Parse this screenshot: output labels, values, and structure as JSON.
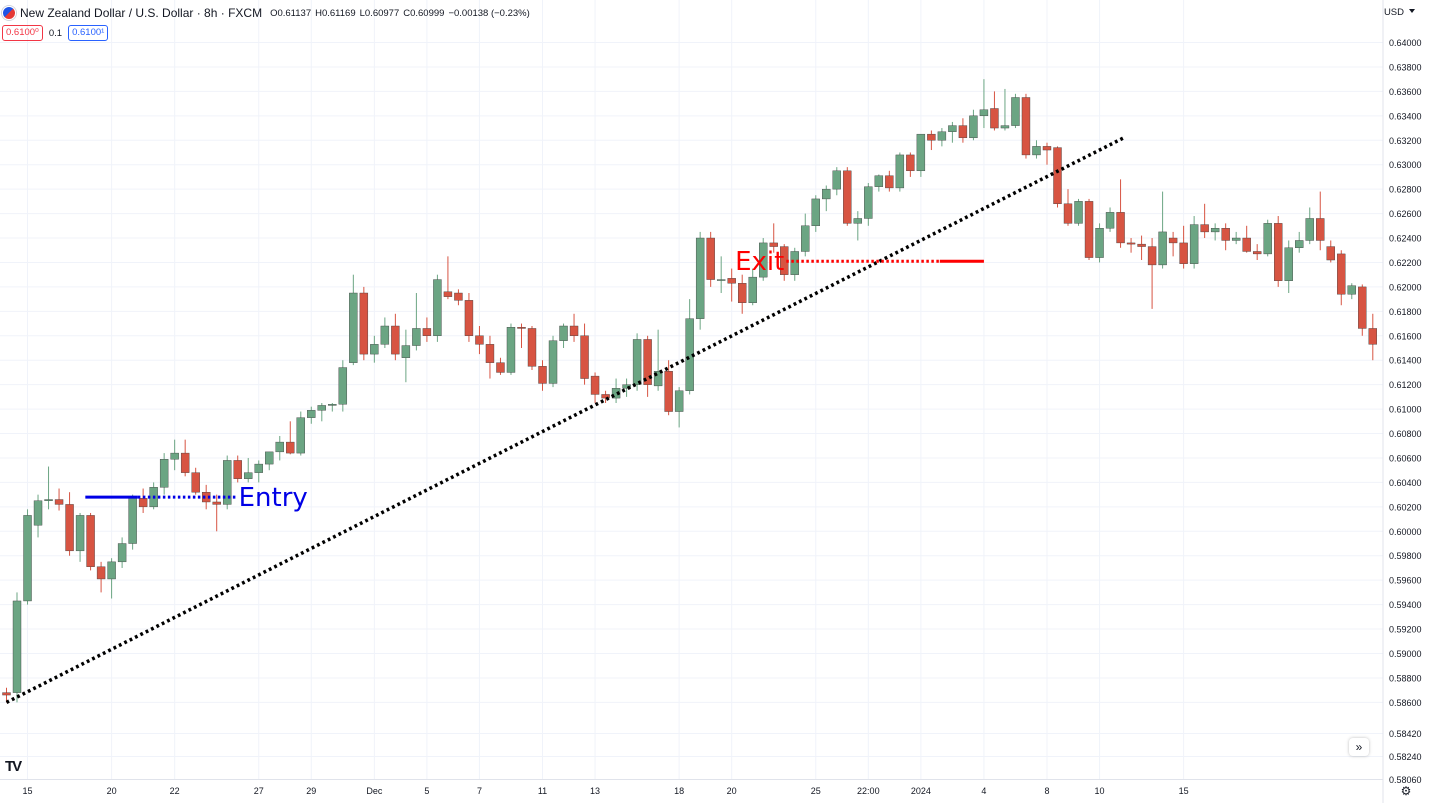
{
  "header": {
    "title": "New Zealand Dollar / U.S. Dollar · 8h · FXCM",
    "open": "O0.61137",
    "high": "H0.61169",
    "low": "L0.60977",
    "close": "C0.60999",
    "change": "−0.00138 (−0.23%)",
    "sell_price": "0.6100⁰",
    "spread": "0.1",
    "buy_price": "0.6100¹"
  },
  "currency": "USD",
  "colors": {
    "up": "#6ba583",
    "down": "#d75442",
    "entry": "#0000e6",
    "exit": "#ff0000",
    "trend": "#000000"
  },
  "chart_data": {
    "type": "candlestick",
    "symbol": "NZDUSD",
    "timeframe": "8h",
    "ylim": [
      0.5804,
      0.641
    ],
    "y_ticks": [
      "0.64000",
      "0.63800",
      "0.63600",
      "0.63400",
      "0.63200",
      "0.63000",
      "0.62800",
      "0.62600",
      "0.62400",
      "0.62200",
      "0.62000",
      "0.61800",
      "0.61600",
      "0.61400",
      "0.61200",
      "0.61000",
      "0.60800",
      "0.60600",
      "0.60400",
      "0.60200",
      "0.60000",
      "0.59800",
      "0.59600",
      "0.59400",
      "0.59200",
      "0.59000",
      "0.58800",
      "0.58600",
      "0.58420",
      "0.58240",
      "0.58060"
    ],
    "x_ticks": [
      {
        "label": "15",
        "i": 2
      },
      {
        "label": "20",
        "i": 10
      },
      {
        "label": "22",
        "i": 16
      },
      {
        "label": "27",
        "i": 24
      },
      {
        "label": "29",
        "i": 29
      },
      {
        "label": "Dec",
        "i": 35
      },
      {
        "label": "5",
        "i": 40
      },
      {
        "label": "7",
        "i": 45
      },
      {
        "label": "11",
        "i": 51
      },
      {
        "label": "13",
        "i": 56
      },
      {
        "label": "18",
        "i": 64
      },
      {
        "label": "20",
        "i": 69
      },
      {
        "label": "25",
        "i": 77
      },
      {
        "label": "22:00",
        "i": 82
      },
      {
        "label": "2024",
        "i": 87
      },
      {
        "label": "4",
        "i": 93
      },
      {
        "label": "8",
        "i": 99
      },
      {
        "label": "10",
        "i": 104
      },
      {
        "label": "15",
        "i": 112
      }
    ],
    "candles": [
      {
        "o": 0.5868,
        "h": 0.5872,
        "l": 0.586,
        "c": 0.5866
      },
      {
        "o": 0.5868,
        "h": 0.595,
        "l": 0.586,
        "c": 0.5943
      },
      {
        "o": 0.5943,
        "h": 0.6018,
        "l": 0.594,
        "c": 0.6013
      },
      {
        "o": 0.6005,
        "h": 0.603,
        "l": 0.5995,
        "c": 0.6025
      },
      {
        "o": 0.6025,
        "h": 0.6053,
        "l": 0.6018,
        "c": 0.6026
      },
      {
        "o": 0.6026,
        "h": 0.6035,
        "l": 0.6017,
        "c": 0.6022
      },
      {
        "o": 0.6022,
        "h": 0.6032,
        "l": 0.598,
        "c": 0.5984
      },
      {
        "o": 0.5984,
        "h": 0.6015,
        "l": 0.5975,
        "c": 0.6013
      },
      {
        "o": 0.6013,
        "h": 0.6015,
        "l": 0.5968,
        "c": 0.5971
      },
      {
        "o": 0.5971,
        "h": 0.5975,
        "l": 0.595,
        "c": 0.5961
      },
      {
        "o": 0.5961,
        "h": 0.5978,
        "l": 0.5945,
        "c": 0.5975
      },
      {
        "o": 0.5975,
        "h": 0.5995,
        "l": 0.597,
        "c": 0.599
      },
      {
        "o": 0.599,
        "h": 0.603,
        "l": 0.5985,
        "c": 0.6027
      },
      {
        "o": 0.6027,
        "h": 0.6035,
        "l": 0.6015,
        "c": 0.602
      },
      {
        "o": 0.602,
        "h": 0.604,
        "l": 0.6018,
        "c": 0.6036
      },
      {
        "o": 0.6036,
        "h": 0.6064,
        "l": 0.603,
        "c": 0.6059
      },
      {
        "o": 0.6059,
        "h": 0.6075,
        "l": 0.605,
        "c": 0.6064
      },
      {
        "o": 0.6064,
        "h": 0.6075,
        "l": 0.6045,
        "c": 0.6048
      },
      {
        "o": 0.6048,
        "h": 0.6052,
        "l": 0.603,
        "c": 0.6032
      },
      {
        "o": 0.6032,
        "h": 0.6038,
        "l": 0.6018,
        "c": 0.6024
      },
      {
        "o": 0.6024,
        "h": 0.603,
        "l": 0.6,
        "c": 0.6022
      },
      {
        "o": 0.6022,
        "h": 0.6062,
        "l": 0.6018,
        "c": 0.6058
      },
      {
        "o": 0.6058,
        "h": 0.6062,
        "l": 0.604,
        "c": 0.6043
      },
      {
        "o": 0.6043,
        "h": 0.606,
        "l": 0.604,
        "c": 0.6048
      },
      {
        "o": 0.6048,
        "h": 0.6058,
        "l": 0.604,
        "c": 0.6055
      },
      {
        "o": 0.6055,
        "h": 0.6065,
        "l": 0.605,
        "c": 0.6065
      },
      {
        "o": 0.6065,
        "h": 0.6078,
        "l": 0.6058,
        "c": 0.6073
      },
      {
        "o": 0.6073,
        "h": 0.609,
        "l": 0.6063,
        "c": 0.6064
      },
      {
        "o": 0.6064,
        "h": 0.6098,
        "l": 0.6062,
        "c": 0.6093
      },
      {
        "o": 0.6093,
        "h": 0.6102,
        "l": 0.6088,
        "c": 0.6099
      },
      {
        "o": 0.6099,
        "h": 0.6105,
        "l": 0.609,
        "c": 0.6103
      },
      {
        "o": 0.6103,
        "h": 0.6105,
        "l": 0.6098,
        "c": 0.6104
      },
      {
        "o": 0.6104,
        "h": 0.614,
        "l": 0.6098,
        "c": 0.6134
      },
      {
        "o": 0.6138,
        "h": 0.621,
        "l": 0.6136,
        "c": 0.6195
      },
      {
        "o": 0.6195,
        "h": 0.62,
        "l": 0.614,
        "c": 0.6145
      },
      {
        "o": 0.6145,
        "h": 0.616,
        "l": 0.6138,
        "c": 0.6153
      },
      {
        "o": 0.6153,
        "h": 0.6175,
        "l": 0.615,
        "c": 0.6168
      },
      {
        "o": 0.6168,
        "h": 0.6178,
        "l": 0.614,
        "c": 0.6145
      },
      {
        "o": 0.6142,
        "h": 0.6165,
        "l": 0.6122,
        "c": 0.6152
      },
      {
        "o": 0.6152,
        "h": 0.6195,
        "l": 0.6148,
        "c": 0.6166
      },
      {
        "o": 0.6166,
        "h": 0.6175,
        "l": 0.6155,
        "c": 0.616
      },
      {
        "o": 0.616,
        "h": 0.621,
        "l": 0.6155,
        "c": 0.6206
      },
      {
        "o": 0.6196,
        "h": 0.6225,
        "l": 0.619,
        "c": 0.6192
      },
      {
        "o": 0.6195,
        "h": 0.6198,
        "l": 0.6185,
        "c": 0.6189
      },
      {
        "o": 0.6189,
        "h": 0.6195,
        "l": 0.6155,
        "c": 0.616
      },
      {
        "o": 0.616,
        "h": 0.6168,
        "l": 0.6145,
        "c": 0.6153
      },
      {
        "o": 0.6153,
        "h": 0.616,
        "l": 0.6125,
        "c": 0.6138
      },
      {
        "o": 0.6138,
        "h": 0.6142,
        "l": 0.6128,
        "c": 0.613
      },
      {
        "o": 0.613,
        "h": 0.617,
        "l": 0.6128,
        "c": 0.6167
      },
      {
        "o": 0.6167,
        "h": 0.617,
        "l": 0.615,
        "c": 0.6166
      },
      {
        "o": 0.6166,
        "h": 0.6168,
        "l": 0.6132,
        "c": 0.6135
      },
      {
        "o": 0.6135,
        "h": 0.614,
        "l": 0.6115,
        "c": 0.6121
      },
      {
        "o": 0.6121,
        "h": 0.616,
        "l": 0.6118,
        "c": 0.6156
      },
      {
        "o": 0.6156,
        "h": 0.617,
        "l": 0.615,
        "c": 0.6168
      },
      {
        "o": 0.6168,
        "h": 0.6178,
        "l": 0.6155,
        "c": 0.616
      },
      {
        "o": 0.616,
        "h": 0.617,
        "l": 0.612,
        "c": 0.6125
      },
      {
        "o": 0.6127,
        "h": 0.613,
        "l": 0.6105,
        "c": 0.6112
      },
      {
        "o": 0.6112,
        "h": 0.6115,
        "l": 0.6105,
        "c": 0.6109
      },
      {
        "o": 0.6109,
        "h": 0.6125,
        "l": 0.6105,
        "c": 0.6117
      },
      {
        "o": 0.6117,
        "h": 0.6125,
        "l": 0.611,
        "c": 0.612
      },
      {
        "o": 0.612,
        "h": 0.6162,
        "l": 0.6115,
        "c": 0.6157
      },
      {
        "o": 0.6157,
        "h": 0.616,
        "l": 0.611,
        "c": 0.612
      },
      {
        "o": 0.6119,
        "h": 0.6165,
        "l": 0.6115,
        "c": 0.6131
      },
      {
        "o": 0.6131,
        "h": 0.614,
        "l": 0.6095,
        "c": 0.6098
      },
      {
        "o": 0.6098,
        "h": 0.6118,
        "l": 0.6085,
        "c": 0.6115
      },
      {
        "o": 0.6115,
        "h": 0.619,
        "l": 0.6112,
        "c": 0.6174
      },
      {
        "o": 0.6174,
        "h": 0.6245,
        "l": 0.6165,
        "c": 0.624
      },
      {
        "o": 0.624,
        "h": 0.6245,
        "l": 0.62,
        "c": 0.6206
      },
      {
        "o": 0.6206,
        "h": 0.6225,
        "l": 0.6195,
        "c": 0.6206
      },
      {
        "o": 0.6207,
        "h": 0.6215,
        "l": 0.6188,
        "c": 0.6203
      },
      {
        "o": 0.6203,
        "h": 0.621,
        "l": 0.6178,
        "c": 0.6187
      },
      {
        "o": 0.6187,
        "h": 0.6215,
        "l": 0.6185,
        "c": 0.6208
      },
      {
        "o": 0.6208,
        "h": 0.624,
        "l": 0.6205,
        "c": 0.6236
      },
      {
        "o": 0.6236,
        "h": 0.6252,
        "l": 0.6228,
        "c": 0.6233
      },
      {
        "o": 0.6233,
        "h": 0.6235,
        "l": 0.6205,
        "c": 0.621
      },
      {
        "o": 0.621,
        "h": 0.6232,
        "l": 0.6205,
        "c": 0.6229
      },
      {
        "o": 0.6229,
        "h": 0.626,
        "l": 0.6225,
        "c": 0.625
      },
      {
        "o": 0.625,
        "h": 0.6275,
        "l": 0.6245,
        "c": 0.6272
      },
      {
        "o": 0.6272,
        "h": 0.6283,
        "l": 0.6262,
        "c": 0.628
      },
      {
        "o": 0.628,
        "h": 0.6298,
        "l": 0.6275,
        "c": 0.6295
      },
      {
        "o": 0.6295,
        "h": 0.6298,
        "l": 0.625,
        "c": 0.6252
      },
      {
        "o": 0.6252,
        "h": 0.6262,
        "l": 0.6238,
        "c": 0.6256
      },
      {
        "o": 0.6256,
        "h": 0.6285,
        "l": 0.625,
        "c": 0.6282
      },
      {
        "o": 0.6282,
        "h": 0.6292,
        "l": 0.6278,
        "c": 0.6291
      },
      {
        "o": 0.6291,
        "h": 0.6295,
        "l": 0.6278,
        "c": 0.6281
      },
      {
        "o": 0.6281,
        "h": 0.631,
        "l": 0.6278,
        "c": 0.6308
      },
      {
        "o": 0.6308,
        "h": 0.631,
        "l": 0.629,
        "c": 0.6295
      },
      {
        "o": 0.6295,
        "h": 0.6325,
        "l": 0.629,
        "c": 0.6325
      },
      {
        "o": 0.6325,
        "h": 0.6328,
        "l": 0.6312,
        "c": 0.632
      },
      {
        "o": 0.632,
        "h": 0.633,
        "l": 0.6315,
        "c": 0.6327
      },
      {
        "o": 0.6327,
        "h": 0.6335,
        "l": 0.6318,
        "c": 0.6332
      },
      {
        "o": 0.6332,
        "h": 0.6338,
        "l": 0.6318,
        "c": 0.6322
      },
      {
        "o": 0.6322,
        "h": 0.6345,
        "l": 0.632,
        "c": 0.634
      },
      {
        "o": 0.634,
        "h": 0.637,
        "l": 0.633,
        "c": 0.6345
      },
      {
        "o": 0.6346,
        "h": 0.636,
        "l": 0.6328,
        "c": 0.633
      },
      {
        "o": 0.633,
        "h": 0.6362,
        "l": 0.6328,
        "c": 0.6332
      },
      {
        "o": 0.6332,
        "h": 0.6358,
        "l": 0.633,
        "c": 0.6355
      },
      {
        "o": 0.6355,
        "h": 0.6358,
        "l": 0.6305,
        "c": 0.6308
      },
      {
        "o": 0.6308,
        "h": 0.632,
        "l": 0.6305,
        "c": 0.6315
      },
      {
        "o": 0.6315,
        "h": 0.6318,
        "l": 0.63,
        "c": 0.6312
      },
      {
        "o": 0.6314,
        "h": 0.6315,
        "l": 0.6265,
        "c": 0.6268
      },
      {
        "o": 0.6268,
        "h": 0.628,
        "l": 0.625,
        "c": 0.6252
      },
      {
        "o": 0.6252,
        "h": 0.6272,
        "l": 0.625,
        "c": 0.627
      },
      {
        "o": 0.627,
        "h": 0.6272,
        "l": 0.6222,
        "c": 0.6224
      },
      {
        "o": 0.6224,
        "h": 0.6252,
        "l": 0.622,
        "c": 0.6248
      },
      {
        "o": 0.6248,
        "h": 0.6265,
        "l": 0.6245,
        "c": 0.6261
      },
      {
        "o": 0.6261,
        "h": 0.6288,
        "l": 0.6232,
        "c": 0.6236
      },
      {
        "o": 0.6236,
        "h": 0.624,
        "l": 0.6228,
        "c": 0.6235
      },
      {
        "o": 0.6235,
        "h": 0.6242,
        "l": 0.6222,
        "c": 0.6233
      },
      {
        "o": 0.6233,
        "h": 0.624,
        "l": 0.6182,
        "c": 0.6218
      },
      {
        "o": 0.6218,
        "h": 0.6278,
        "l": 0.6215,
        "c": 0.6245
      },
      {
        "o": 0.624,
        "h": 0.6245,
        "l": 0.6225,
        "c": 0.6236
      },
      {
        "o": 0.6236,
        "h": 0.625,
        "l": 0.6215,
        "c": 0.6219
      },
      {
        "o": 0.6219,
        "h": 0.6258,
        "l": 0.6215,
        "c": 0.6251
      },
      {
        "o": 0.6251,
        "h": 0.6268,
        "l": 0.624,
        "c": 0.6245
      },
      {
        "o": 0.6245,
        "h": 0.6252,
        "l": 0.6238,
        "c": 0.6248
      },
      {
        "o": 0.6248,
        "h": 0.6252,
        "l": 0.623,
        "c": 0.6238
      },
      {
        "o": 0.6238,
        "h": 0.6245,
        "l": 0.6235,
        "c": 0.624
      },
      {
        "o": 0.624,
        "h": 0.625,
        "l": 0.6228,
        "c": 0.6229
      },
      {
        "o": 0.6229,
        "h": 0.6235,
        "l": 0.6222,
        "c": 0.6227
      },
      {
        "o": 0.6227,
        "h": 0.6255,
        "l": 0.6225,
        "c": 0.6252
      },
      {
        "o": 0.6252,
        "h": 0.6258,
        "l": 0.62,
        "c": 0.6205
      },
      {
        "o": 0.6205,
        "h": 0.6238,
        "l": 0.6195,
        "c": 0.6232
      },
      {
        "o": 0.6232,
        "h": 0.6245,
        "l": 0.6228,
        "c": 0.6238
      },
      {
        "o": 0.6238,
        "h": 0.6265,
        "l": 0.6235,
        "c": 0.6256
      },
      {
        "o": 0.6256,
        "h": 0.6278,
        "l": 0.623,
        "c": 0.6238
      },
      {
        "o": 0.6233,
        "h": 0.6238,
        "l": 0.622,
        "c": 0.6222
      },
      {
        "o": 0.6227,
        "h": 0.623,
        "l": 0.6185,
        "c": 0.6194
      },
      {
        "o": 0.6194,
        "h": 0.6203,
        "l": 0.619,
        "c": 0.6201
      },
      {
        "o": 0.62,
        "h": 0.6202,
        "l": 0.616,
        "c": 0.6166
      },
      {
        "o": 0.6166,
        "h": 0.6178,
        "l": 0.614,
        "c": 0.6153
      }
    ],
    "trendline": {
      "start": {
        "i": 0,
        "price": 0.586
      },
      "end": {
        "i": 106.3,
        "price": 0.6322
      },
      "style": "dotted"
    },
    "annotations": [
      {
        "label": "Entry",
        "price": 0.6028,
        "i_start": 7.5,
        "i_solid_end": 12.5,
        "i_end": 21.8
      },
      {
        "label": "Exit",
        "price": 0.6221,
        "i_start": 74.2,
        "i_dotted_end": 88.8,
        "i_end": 93.0
      }
    ]
  }
}
